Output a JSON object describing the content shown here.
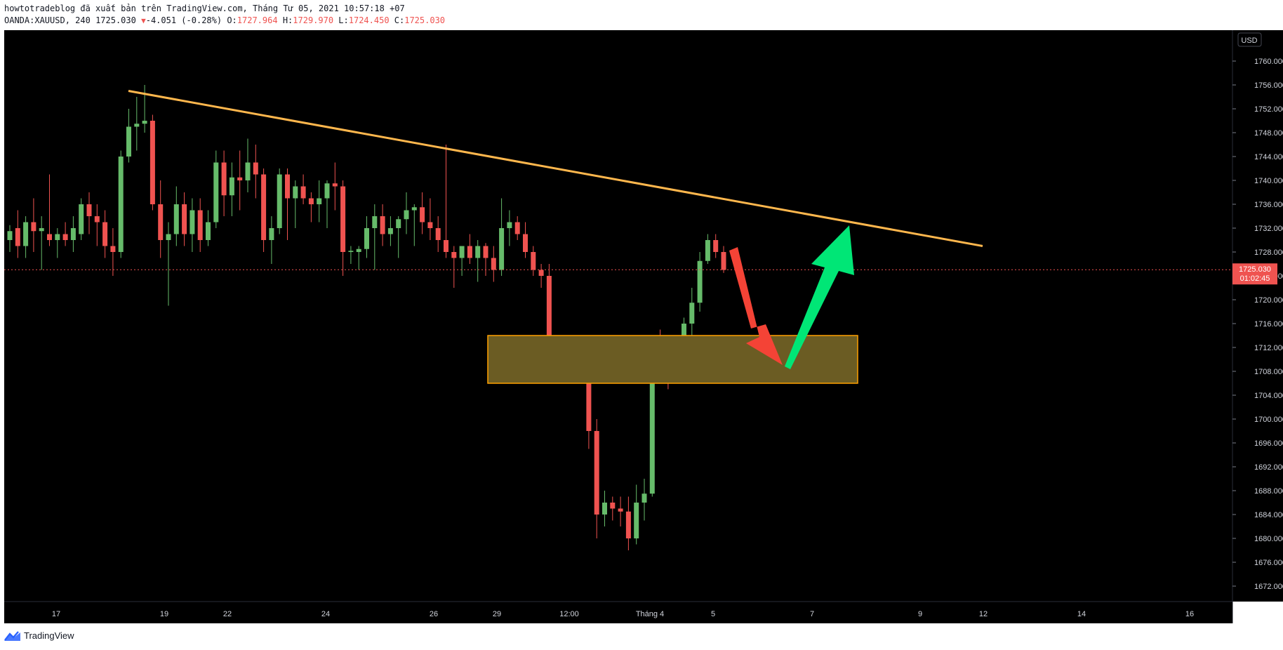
{
  "header": {
    "line1": "howtotradeblog đã xuất bản trên TradingView.com, Tháng Tư 05, 2021 10:57:18 +07",
    "symbol": "OANDA:XAUUSD, 240",
    "last": "1725.030",
    "change": "-4.051 (-0.28%)",
    "open_label": "O:",
    "open": "1727.964",
    "high_label": "H:",
    "high": "1729.970",
    "low_label": "L:",
    "low": "1724.450",
    "close_label": "C:",
    "close": "1725.030"
  },
  "price_axis": {
    "currency": "USD",
    "ticks": [
      "1760.000",
      "1756.000",
      "1752.000",
      "1748.000",
      "1744.000",
      "1740.000",
      "1736.000",
      "1732.000",
      "1728.000",
      "1724.000",
      "1720.000",
      "1716.000",
      "1712.000",
      "1708.000",
      "1704.000",
      "1700.000",
      "1696.000",
      "1692.000",
      "1688.000",
      "1684.000",
      "1680.000",
      "1676.000",
      "1672.000"
    ],
    "current_price_label": "1725.030",
    "countdown_label": "01:02:45"
  },
  "time_axis": {
    "labels": [
      "17",
      "19",
      "22",
      "24",
      "26",
      "29",
      "12:00",
      "Tháng 4",
      "5",
      "7",
      "9",
      "12",
      "14",
      "16"
    ]
  },
  "brand": {
    "name": "TradingView"
  },
  "colors": {
    "background": "#000000",
    "up": "#66bb6a",
    "down": "#ef5350",
    "trendline": "#ffb74d",
    "zone_fill": "#6b5c23",
    "zone_border": "#ffa000",
    "arrow_down": "#f44336",
    "arrow_up": "#00e676",
    "current_price": "#ef5350"
  },
  "chart_data": {
    "type": "candlestick",
    "symbol": "OANDA:XAUUSD",
    "timeframe": "240",
    "x_labels": [
      "17",
      "19",
      "22",
      "24",
      "26",
      "29",
      "12:00",
      "Tháng 4",
      "5",
      "7",
      "9",
      "12",
      "14",
      "16"
    ],
    "y_range": [
      1669,
      1763
    ],
    "current_price": 1725.03,
    "ohlc": [
      [
        1730.0,
        1732.5,
        1728.0,
        1731.5
      ],
      [
        1732.0,
        1735.0,
        1727.0,
        1729.0
      ],
      [
        1729.0,
        1734.0,
        1727.0,
        1733.0
      ],
      [
        1733.0,
        1737.0,
        1728.0,
        1731.5
      ],
      [
        1731.5,
        1734.0,
        1725.0,
        1732.0
      ],
      [
        1731.0,
        1741.0,
        1729.0,
        1730.0
      ],
      [
        1730.0,
        1732.0,
        1727.0,
        1731.0
      ],
      [
        1731.0,
        1733.0,
        1729.0,
        1730.0
      ],
      [
        1730.0,
        1734.0,
        1728.0,
        1732.0
      ],
      [
        1731.0,
        1737.0,
        1730.0,
        1736.0
      ],
      [
        1736.0,
        1738.0,
        1731.0,
        1734.0
      ],
      [
        1734.0,
        1736.0,
        1729.0,
        1733.0
      ],
      [
        1733.0,
        1735.0,
        1727.0,
        1729.0
      ],
      [
        1729.0,
        1732.0,
        1724.0,
        1728.0
      ],
      [
        1728.0,
        1745.0,
        1727.0,
        1744.0
      ],
      [
        1744.0,
        1752.0,
        1743.0,
        1749.0
      ],
      [
        1749.0,
        1754.0,
        1745.0,
        1749.5
      ],
      [
        1749.5,
        1756.0,
        1748.0,
        1750.0
      ],
      [
        1750.0,
        1751.0,
        1735.0,
        1736.0
      ],
      [
        1736.0,
        1740.0,
        1727.0,
        1730.0
      ],
      [
        1730.0,
        1733.0,
        1719.0,
        1731.0
      ],
      [
        1731.0,
        1739.0,
        1729.0,
        1736.0
      ],
      [
        1736.0,
        1738.0,
        1729.0,
        1731.0
      ],
      [
        1731.0,
        1737.0,
        1728.0,
        1735.0
      ],
      [
        1735.0,
        1737.0,
        1728.0,
        1730.0
      ],
      [
        1730.0,
        1735.0,
        1729.0,
        1733.0
      ],
      [
        1733.0,
        1745.0,
        1732.0,
        1743.0
      ],
      [
        1743.0,
        1745.0,
        1734.0,
        1737.5
      ],
      [
        1737.5,
        1743.0,
        1734.0,
        1740.5
      ],
      [
        1740.5,
        1745.0,
        1735.0,
        1740.0
      ],
      [
        1740.0,
        1747.0,
        1738.0,
        1743.0
      ],
      [
        1743.0,
        1746.0,
        1737.0,
        1741.0
      ],
      [
        1741.0,
        1742.0,
        1728.0,
        1730.0
      ],
      [
        1730.0,
        1734.0,
        1726.0,
        1732.0
      ],
      [
        1732.0,
        1742.0,
        1731.0,
        1741.0
      ],
      [
        1741.0,
        1742.0,
        1730.0,
        1737.0
      ],
      [
        1737.0,
        1740.0,
        1732.0,
        1739.0
      ],
      [
        1739.0,
        1741.0,
        1736.0,
        1737.0
      ],
      [
        1737.0,
        1738.0,
        1733.0,
        1736.0
      ],
      [
        1736.0,
        1740.0,
        1733.0,
        1737.0
      ],
      [
        1737.0,
        1740.0,
        1732.0,
        1739.5
      ],
      [
        1739.5,
        1743.0,
        1735.0,
        1739.0
      ],
      [
        1739.0,
        1740.0,
        1724.0,
        1728.0
      ],
      [
        1728.0,
        1729.0,
        1726.0,
        1728.2
      ],
      [
        1728.0,
        1729.0,
        1725.0,
        1728.5
      ],
      [
        1728.5,
        1734.0,
        1727.0,
        1732.0
      ],
      [
        1732.0,
        1736.0,
        1725.0,
        1734.0
      ],
      [
        1734.0,
        1736.0,
        1729.0,
        1731.0
      ],
      [
        1731.0,
        1734.0,
        1729.0,
        1732.0
      ],
      [
        1732.0,
        1734.0,
        1727.0,
        1733.5
      ],
      [
        1733.5,
        1738.0,
        1731.0,
        1735.0
      ],
      [
        1735.0,
        1736.0,
        1729.0,
        1735.5
      ],
      [
        1735.5,
        1738.0,
        1731.0,
        1733.0
      ],
      [
        1733.0,
        1737.0,
        1730.0,
        1732.0
      ],
      [
        1732.0,
        1734.0,
        1728.0,
        1730.0
      ],
      [
        1730.0,
        1746.0,
        1727.0,
        1728.0
      ],
      [
        1728.0,
        1729.0,
        1722.0,
        1727.0
      ],
      [
        1727.0,
        1729.0,
        1724.0,
        1729.0
      ],
      [
        1729.0,
        1731.0,
        1726.0,
        1727.0
      ],
      [
        1727.0,
        1730.0,
        1723.0,
        1729.0
      ],
      [
        1729.0,
        1729.5,
        1724.0,
        1727.0
      ],
      [
        1727.0,
        1729.0,
        1723.0,
        1725.0
      ],
      [
        1725.0,
        1737.0,
        1724.0,
        1732.0
      ],
      [
        1732.0,
        1735.0,
        1729.0,
        1733.0
      ],
      [
        1733.0,
        1734.0,
        1730.0,
        1731.0
      ],
      [
        1731.0,
        1733.0,
        1727.0,
        1728.0
      ],
      [
        1728.0,
        1729.0,
        1724.0,
        1725.0
      ],
      [
        1725.0,
        1726.0,
        1722.0,
        1724.0
      ],
      [
        1724.0,
        1726.0,
        1707.0,
        1713.0
      ],
      [
        1713.0,
        1714.0,
        1708.0,
        1712.0
      ],
      [
        1712.0,
        1714.0,
        1710.0,
        1713.0
      ],
      [
        1713.0,
        1714.0,
        1708.0,
        1710.0
      ],
      [
        1710.0,
        1712.0,
        1706.0,
        1708.0
      ],
      [
        1708.0,
        1709.0,
        1695.0,
        1698.0
      ],
      [
        1698.0,
        1700.0,
        1680.0,
        1684.0
      ],
      [
        1684.0,
        1688.0,
        1682.0,
        1686.0
      ],
      [
        1686.0,
        1687.0,
        1683.0,
        1685.0
      ],
      [
        1685.0,
        1687.0,
        1682.0,
        1684.5
      ],
      [
        1684.5,
        1687.0,
        1678.0,
        1680.0
      ],
      [
        1680.0,
        1689.0,
        1679.0,
        1686.0
      ],
      [
        1686.0,
        1690.0,
        1683.0,
        1687.5
      ],
      [
        1687.5,
        1714.0,
        1687.0,
        1713.0
      ],
      [
        1713.0,
        1715.0,
        1706.0,
        1708.0
      ],
      [
        1708.0,
        1710.0,
        1705.0,
        1707.0
      ],
      [
        1707.0,
        1712.0,
        1706.0,
        1711.5
      ],
      [
        1711.5,
        1717.0,
        1710.0,
        1716.0
      ],
      [
        1716.0,
        1722.0,
        1712.0,
        1719.5
      ],
      [
        1719.5,
        1728.0,
        1718.0,
        1726.5
      ],
      [
        1726.5,
        1731.0,
        1726.0,
        1730.0
      ],
      [
        1730.0,
        1731.0,
        1727.0,
        1728.0
      ],
      [
        1728.0,
        1729.0,
        1724.5,
        1725.0
      ]
    ],
    "trendline": {
      "from": [
        "18 (high)",
        1755.0
      ],
      "to": [
        "12",
        1729.0
      ]
    },
    "zone": {
      "top": 1714.0,
      "bottom": 1706.0,
      "x_from": "28",
      "x_to": "7"
    },
    "annotations": [
      {
        "type": "arrow",
        "direction": "down",
        "color": "red"
      },
      {
        "type": "arrow",
        "direction": "up",
        "color": "green"
      }
    ]
  }
}
